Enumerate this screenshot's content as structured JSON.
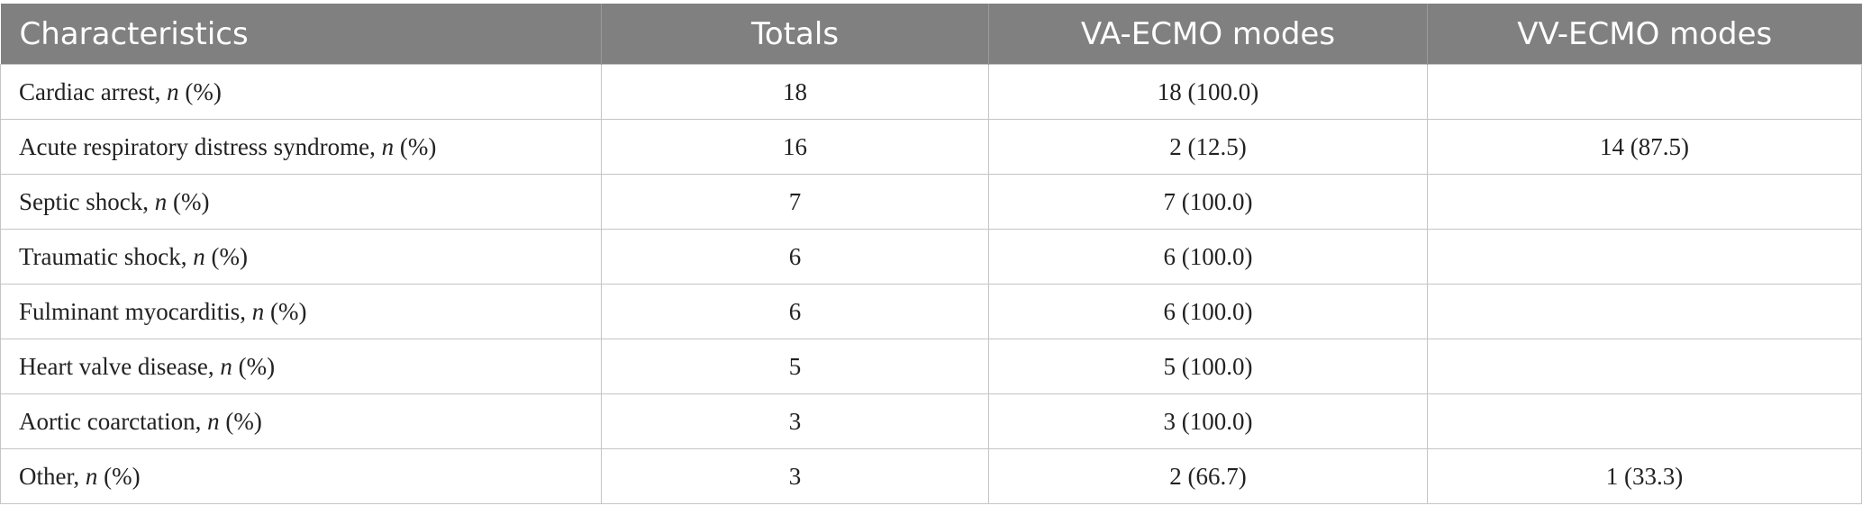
{
  "table": {
    "headers": [
      "Characteristics",
      "Totals",
      "VA-ECMO modes",
      "VV-ECMO modes"
    ],
    "rows": [
      {
        "label": "Cardiac arrest,",
        "n": "n",
        "pct": "(%)",
        "totals": "18",
        "va": "18 (100.0)",
        "vv": ""
      },
      {
        "label": "Acute respiratory distress syndrome,",
        "n": "n",
        "pct": "(%)",
        "totals": "16",
        "va": "2 (12.5)",
        "vv": "14 (87.5)"
      },
      {
        "label": "Septic shock,",
        "n": "n",
        "pct": "(%)",
        "totals": "7",
        "va": "7 (100.0)",
        "vv": ""
      },
      {
        "label": "Traumatic shock,",
        "n": "n",
        "pct": "(%)",
        "totals": "6",
        "va": "6 (100.0)",
        "vv": ""
      },
      {
        "label": "Fulminant myocarditis,",
        "n": "n",
        "pct": "(%)",
        "totals": "6",
        "va": "6 (100.0)",
        "vv": ""
      },
      {
        "label": "Heart valve disease,",
        "n": "n",
        "pct": "(%)",
        "totals": "5",
        "va": "5 (100.0)",
        "vv": ""
      },
      {
        "label": "Aortic coarctation,",
        "n": "n",
        "pct": "(%)",
        "totals": "3",
        "va": "3 (100.0)",
        "vv": ""
      },
      {
        "label": "Other,",
        "n": "n",
        "pct": "(%)",
        "totals": "3",
        "va": "2 (66.7)",
        "vv": "1 (33.3)"
      }
    ]
  }
}
